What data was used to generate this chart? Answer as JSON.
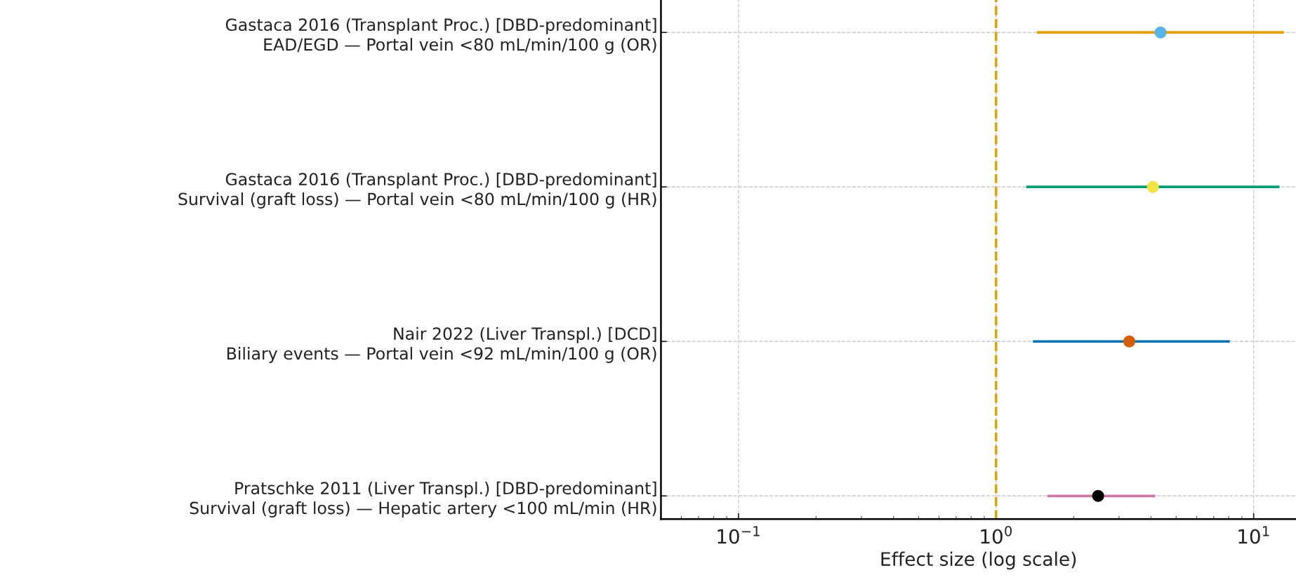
{
  "chart_data": {
    "type": "scatter",
    "orientation": "horizontal",
    "categories": [
      "Gastaca 2016 (Transplant Proc.) [DBD-predominant]\nEAD/EGD — Portal vein <80 mL/min/100 g (OR)",
      "Gastaca 2016 (Transplant Proc.) [DBD-predominant]\nSurvival (graft loss) — Portal vein <80 mL/min/100 g (HR)",
      "Nair 2022 (Liver Transpl.) [DCD]\nBiliary events — Portal vein <92 mL/min/100 g (OR)",
      "Pratschke 2011 (Liver Transpl.) [DBD-predominant]\nSurvival (graft loss) — Hepatic artery <100 mL/min (HR)"
    ],
    "series": [
      {
        "type": "bar",
        "colors": [
          "#e69f00",
          "#009e73",
          "#0072b2",
          "#cc79a7"
        ],
        "base": [
          1.44,
          1.31,
          1.39,
          1.58
        ],
        "values": [
          11.66,
          11.29,
          6.69,
          2.57
        ]
      },
      {
        "marker": "circle",
        "colors": [
          "#56b4e9",
          "#f0e442",
          "#d55e00",
          "#000000"
        ],
        "values": [
          4.35,
          4.06,
          3.29,
          2.49
        ]
      }
    ],
    "xlabel": "Effect size (log scale)",
    "log": "x",
    "xlim": [
      0.05,
      14.6
    ],
    "xticks": [
      {
        "value": 0.1,
        "label": "10$^{−1}$"
      },
      {
        "value": 1,
        "label": "10$^{0}$"
      },
      {
        "value": 10,
        "label": "10$^{1}$"
      }
    ],
    "ref_lines": [
      {
        "axis": "x",
        "value": 1,
        "color": "#e69f00",
        "line_style": "dashed"
      }
    ],
    "grid": true
  }
}
